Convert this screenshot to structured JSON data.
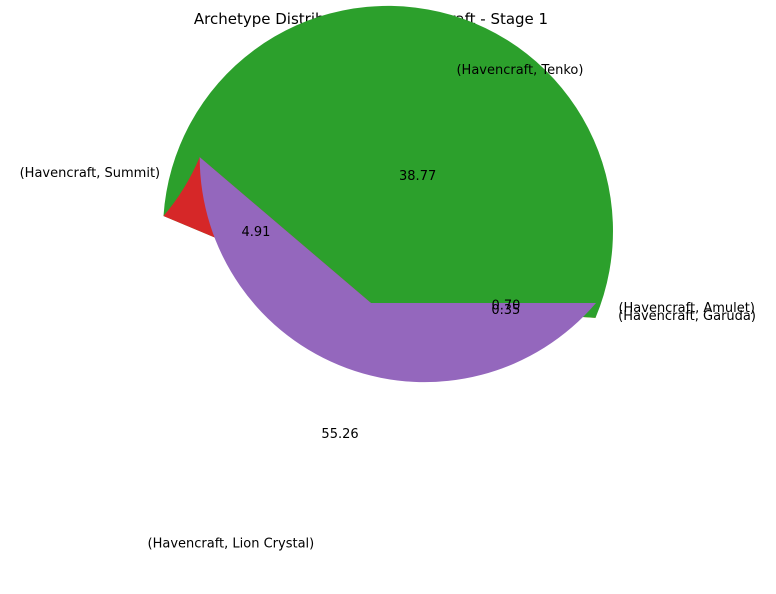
{
  "chart_data": {
    "type": "pie",
    "title": "Archetype Distribution for Havencraft - Stage 1",
    "categories": [
      "(Havencraft, Amulet)",
      "(Havencraft, Garuda)",
      "(Havencraft, Lion Crystal)",
      "(Havencraft, Summit)",
      "(Havencraft, Tenko)"
    ],
    "values": [
      0.7,
      0.35,
      55.26,
      4.91,
      38.77
    ],
    "value_labels": [
      "0.70",
      "0.35",
      "55.26",
      "4.91",
      "38.77"
    ],
    "colors": [
      "#1f77b4",
      "#ff7f0e",
      "#2ca02c",
      "#d62728",
      "#9467bd"
    ],
    "start_angle_deg": 0,
    "direction": "counterclockwise",
    "legend": "none"
  }
}
